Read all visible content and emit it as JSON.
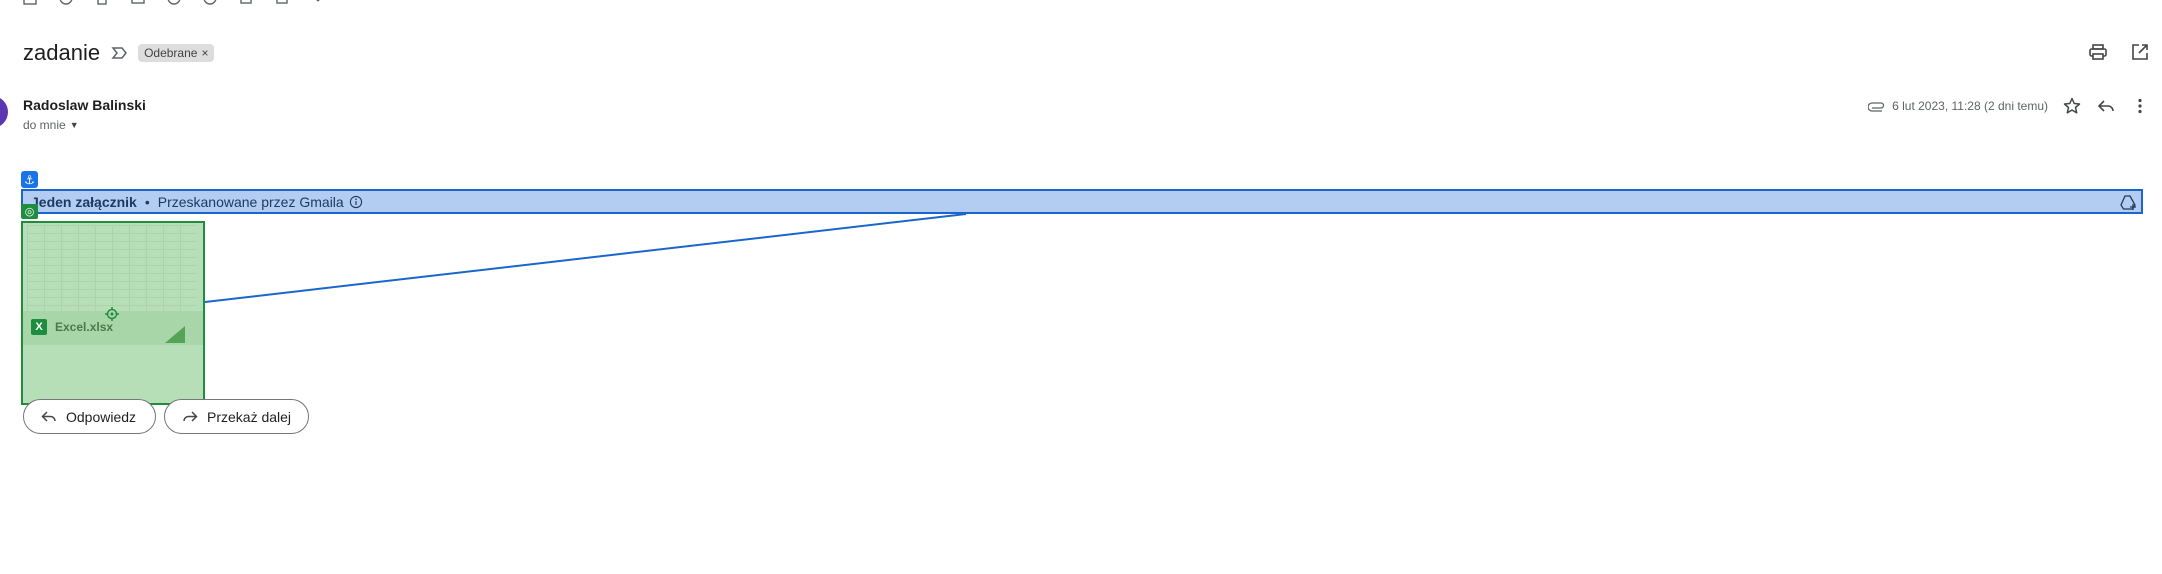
{
  "toolbar": {
    "icons": [
      "archive-icon",
      "report-spam-icon",
      "delete-icon",
      "mark-unread-icon",
      "snooze-icon",
      "add-task-icon",
      "move-to-icon",
      "label-icon",
      "more-icon"
    ]
  },
  "message": {
    "subject": "zadanie",
    "label_chip": "Odebrane",
    "label_chip_close": "×",
    "sender": "Radoslaw Balinski",
    "recipient": "do mnie",
    "date": "6 lut 2023, 11:28 (2 dni temu)"
  },
  "attachments": {
    "title": "Jeden załącznik",
    "separator": "•",
    "scan_note": "Przeskanowane przez Gmaila",
    "file_name": "Excel.xlsx",
    "file_type_letter": "X"
  },
  "actions": {
    "reply": "Odpowiedz",
    "forward": "Przekaż dalej"
  },
  "colors": {
    "highlight_blue": "#b3cdf2",
    "highlight_blue_border": "#1a66cc",
    "highlight_green": "#b7dfb7",
    "highlight_green_border": "#1e8e3e",
    "avatar": "#5e35b1"
  }
}
